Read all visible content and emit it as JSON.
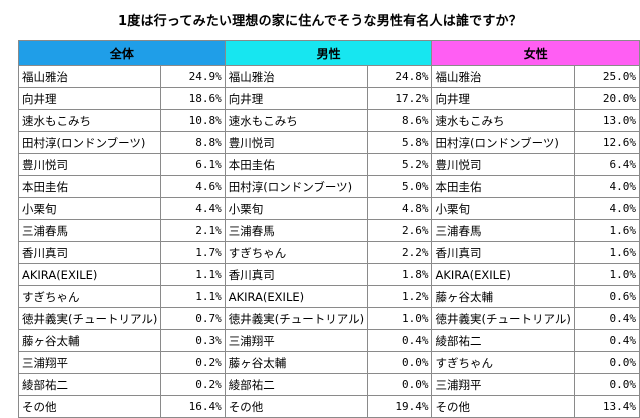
{
  "title": "1度は行ってみたい理想の家に住んでそうな男性有名人は誰ですか？",
  "chart_data": {
    "type": "table",
    "title": "1度は行ってみたい理想の家に住んでそうな男性有名人は誰ですか？",
    "header_colors": {
      "all": "#1f9ee8",
      "male": "#17e6f0",
      "female": "#ff5ef3"
    },
    "groups": [
      {
        "label": "全体",
        "rows": [
          {
            "name": "福山雅治",
            "value": "24.9%"
          },
          {
            "name": "向井理",
            "value": "18.6%"
          },
          {
            "name": "速水もこみち",
            "value": "10.8%"
          },
          {
            "name": "田村淳(ロンドンブーツ)",
            "value": "8.8%"
          },
          {
            "name": "豊川悦司",
            "value": "6.1%"
          },
          {
            "name": "本田圭佑",
            "value": "4.6%"
          },
          {
            "name": "小栗旬",
            "value": "4.4%"
          },
          {
            "name": "三浦春馬",
            "value": "2.1%"
          },
          {
            "name": "香川真司",
            "value": "1.7%"
          },
          {
            "name": "AKIRA(EXILE)",
            "value": "1.1%"
          },
          {
            "name": "すぎちゃん",
            "value": "1.1%"
          },
          {
            "name": "徳井義実(チュートリアル)",
            "value": "0.7%"
          },
          {
            "name": "藤ヶ谷太輔",
            "value": "0.3%"
          },
          {
            "name": "三浦翔平",
            "value": "0.2%"
          },
          {
            "name": "綾部祐二",
            "value": "0.2%"
          },
          {
            "name": "その他",
            "value": "16.4%"
          }
        ]
      },
      {
        "label": "男性",
        "rows": [
          {
            "name": "福山雅治",
            "value": "24.8%"
          },
          {
            "name": "向井理",
            "value": "17.2%"
          },
          {
            "name": "速水もこみち",
            "value": "8.6%"
          },
          {
            "name": "豊川悦司",
            "value": "5.8%"
          },
          {
            "name": "本田圭佑",
            "value": "5.2%"
          },
          {
            "name": "田村淳(ロンドンブーツ)",
            "value": "5.0%"
          },
          {
            "name": "小栗旬",
            "value": "4.8%"
          },
          {
            "name": "三浦春馬",
            "value": "2.6%"
          },
          {
            "name": "すぎちゃん",
            "value": "2.2%"
          },
          {
            "name": "香川真司",
            "value": "1.8%"
          },
          {
            "name": "AKIRA(EXILE)",
            "value": "1.2%"
          },
          {
            "name": "徳井義実(チュートリアル)",
            "value": "1.0%"
          },
          {
            "name": "三浦翔平",
            "value": "0.4%"
          },
          {
            "name": "藤ヶ谷太輔",
            "value": "0.0%"
          },
          {
            "name": "綾部祐二",
            "value": "0.0%"
          },
          {
            "name": "その他",
            "value": "19.4%"
          }
        ]
      },
      {
        "label": "女性",
        "rows": [
          {
            "name": "福山雅治",
            "value": "25.0%"
          },
          {
            "name": "向井理",
            "value": "20.0%"
          },
          {
            "name": "速水もこみち",
            "value": "13.0%"
          },
          {
            "name": "田村淳(ロンドンブーツ)",
            "value": "12.6%"
          },
          {
            "name": "豊川悦司",
            "value": "6.4%"
          },
          {
            "name": "本田圭佑",
            "value": "4.0%"
          },
          {
            "name": "小栗旬",
            "value": "4.0%"
          },
          {
            "name": "三浦春馬",
            "value": "1.6%"
          },
          {
            "name": "香川真司",
            "value": "1.6%"
          },
          {
            "name": "AKIRA(EXILE)",
            "value": "1.0%"
          },
          {
            "name": "藤ヶ谷太輔",
            "value": "0.6%"
          },
          {
            "name": "徳井義実(チュートリアル)",
            "value": "0.4%"
          },
          {
            "name": "綾部祐二",
            "value": "0.4%"
          },
          {
            "name": "すぎちゃん",
            "value": "0.0%"
          },
          {
            "name": "三浦翔平",
            "value": "0.0%"
          },
          {
            "name": "その他",
            "value": "13.4%"
          }
        ]
      }
    ]
  }
}
